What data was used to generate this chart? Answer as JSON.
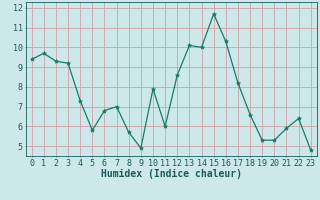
{
  "x": [
    0,
    1,
    2,
    3,
    4,
    5,
    6,
    7,
    8,
    9,
    10,
    11,
    12,
    13,
    14,
    15,
    16,
    17,
    18,
    19,
    20,
    21,
    22,
    23
  ],
  "y": [
    9.4,
    9.7,
    9.3,
    9.2,
    7.3,
    5.8,
    6.8,
    7.0,
    5.7,
    4.9,
    7.9,
    6.0,
    8.6,
    10.1,
    10.0,
    11.7,
    10.3,
    8.2,
    6.6,
    5.3,
    5.3,
    5.9,
    6.4,
    4.8
  ],
  "line_color": "#1a7a6a",
  "marker": "*",
  "marker_color": "#1a7a6a",
  "bg_color": "#cce8e8",
  "grid_color": "#d0a0a8",
  "xlabel": "Humidex (Indice chaleur)",
  "ylabel": "",
  "title": "",
  "ylim": [
    4.5,
    12.3
  ],
  "xlim": [
    -0.5,
    23.5
  ],
  "yticks": [
    5,
    6,
    7,
    8,
    9,
    10,
    11,
    12
  ],
  "xticks": [
    0,
    1,
    2,
    3,
    4,
    5,
    6,
    7,
    8,
    9,
    10,
    11,
    12,
    13,
    14,
    15,
    16,
    17,
    18,
    19,
    20,
    21,
    22,
    23
  ],
  "tick_fontsize": 6,
  "xlabel_fontsize": 7,
  "label_color": "#1a5a5a"
}
